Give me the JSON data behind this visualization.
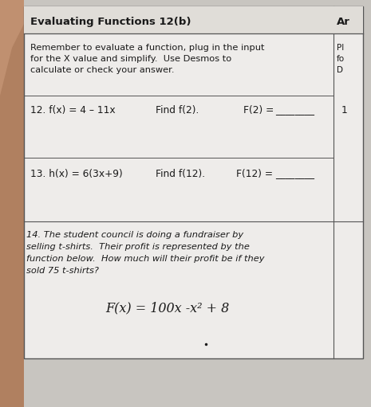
{
  "title": "Evaluating Functions 12(b)",
  "right_col_header": "Ar",
  "right_col_text_1": "Pl",
  "right_col_text_2": "fo",
  "right_col_text_3": "D",
  "right_col_number": "1",
  "instruction_line1": "Remember to evaluate a function, plug in the input",
  "instruction_line2": "for the X value and simplify.  Use Desmos to",
  "instruction_line3": "calculate or check your answer.",
  "q12_func": "12. f(x) = 4 – 11x",
  "q12_find": "Find f(2).",
  "q12_answer_label": "F(2) = ",
  "q12_line": "________",
  "q13_func": "13. h(x) = 6(3x+9)",
  "q13_find": "Find f(12).",
  "q13_answer_label": "F(12) = ",
  "q13_line": "________",
  "q14_line1": "14. The student council is doing a fundraiser by",
  "q14_line2": "selling t-shirts.  Their profit is represented by the",
  "q14_line3": "function below.  How much will their profit be if they",
  "q14_line4": "sold 75 t-shirts?",
  "q14_formula": "F(x) = 100x -x² + 8",
  "bg_color": "#c8c5c0",
  "paper_color": "#eeecea",
  "header_color": "#e0ddd8",
  "border_color": "#555555",
  "text_color": "#1a1a1a",
  "finger_color": "#b08060"
}
